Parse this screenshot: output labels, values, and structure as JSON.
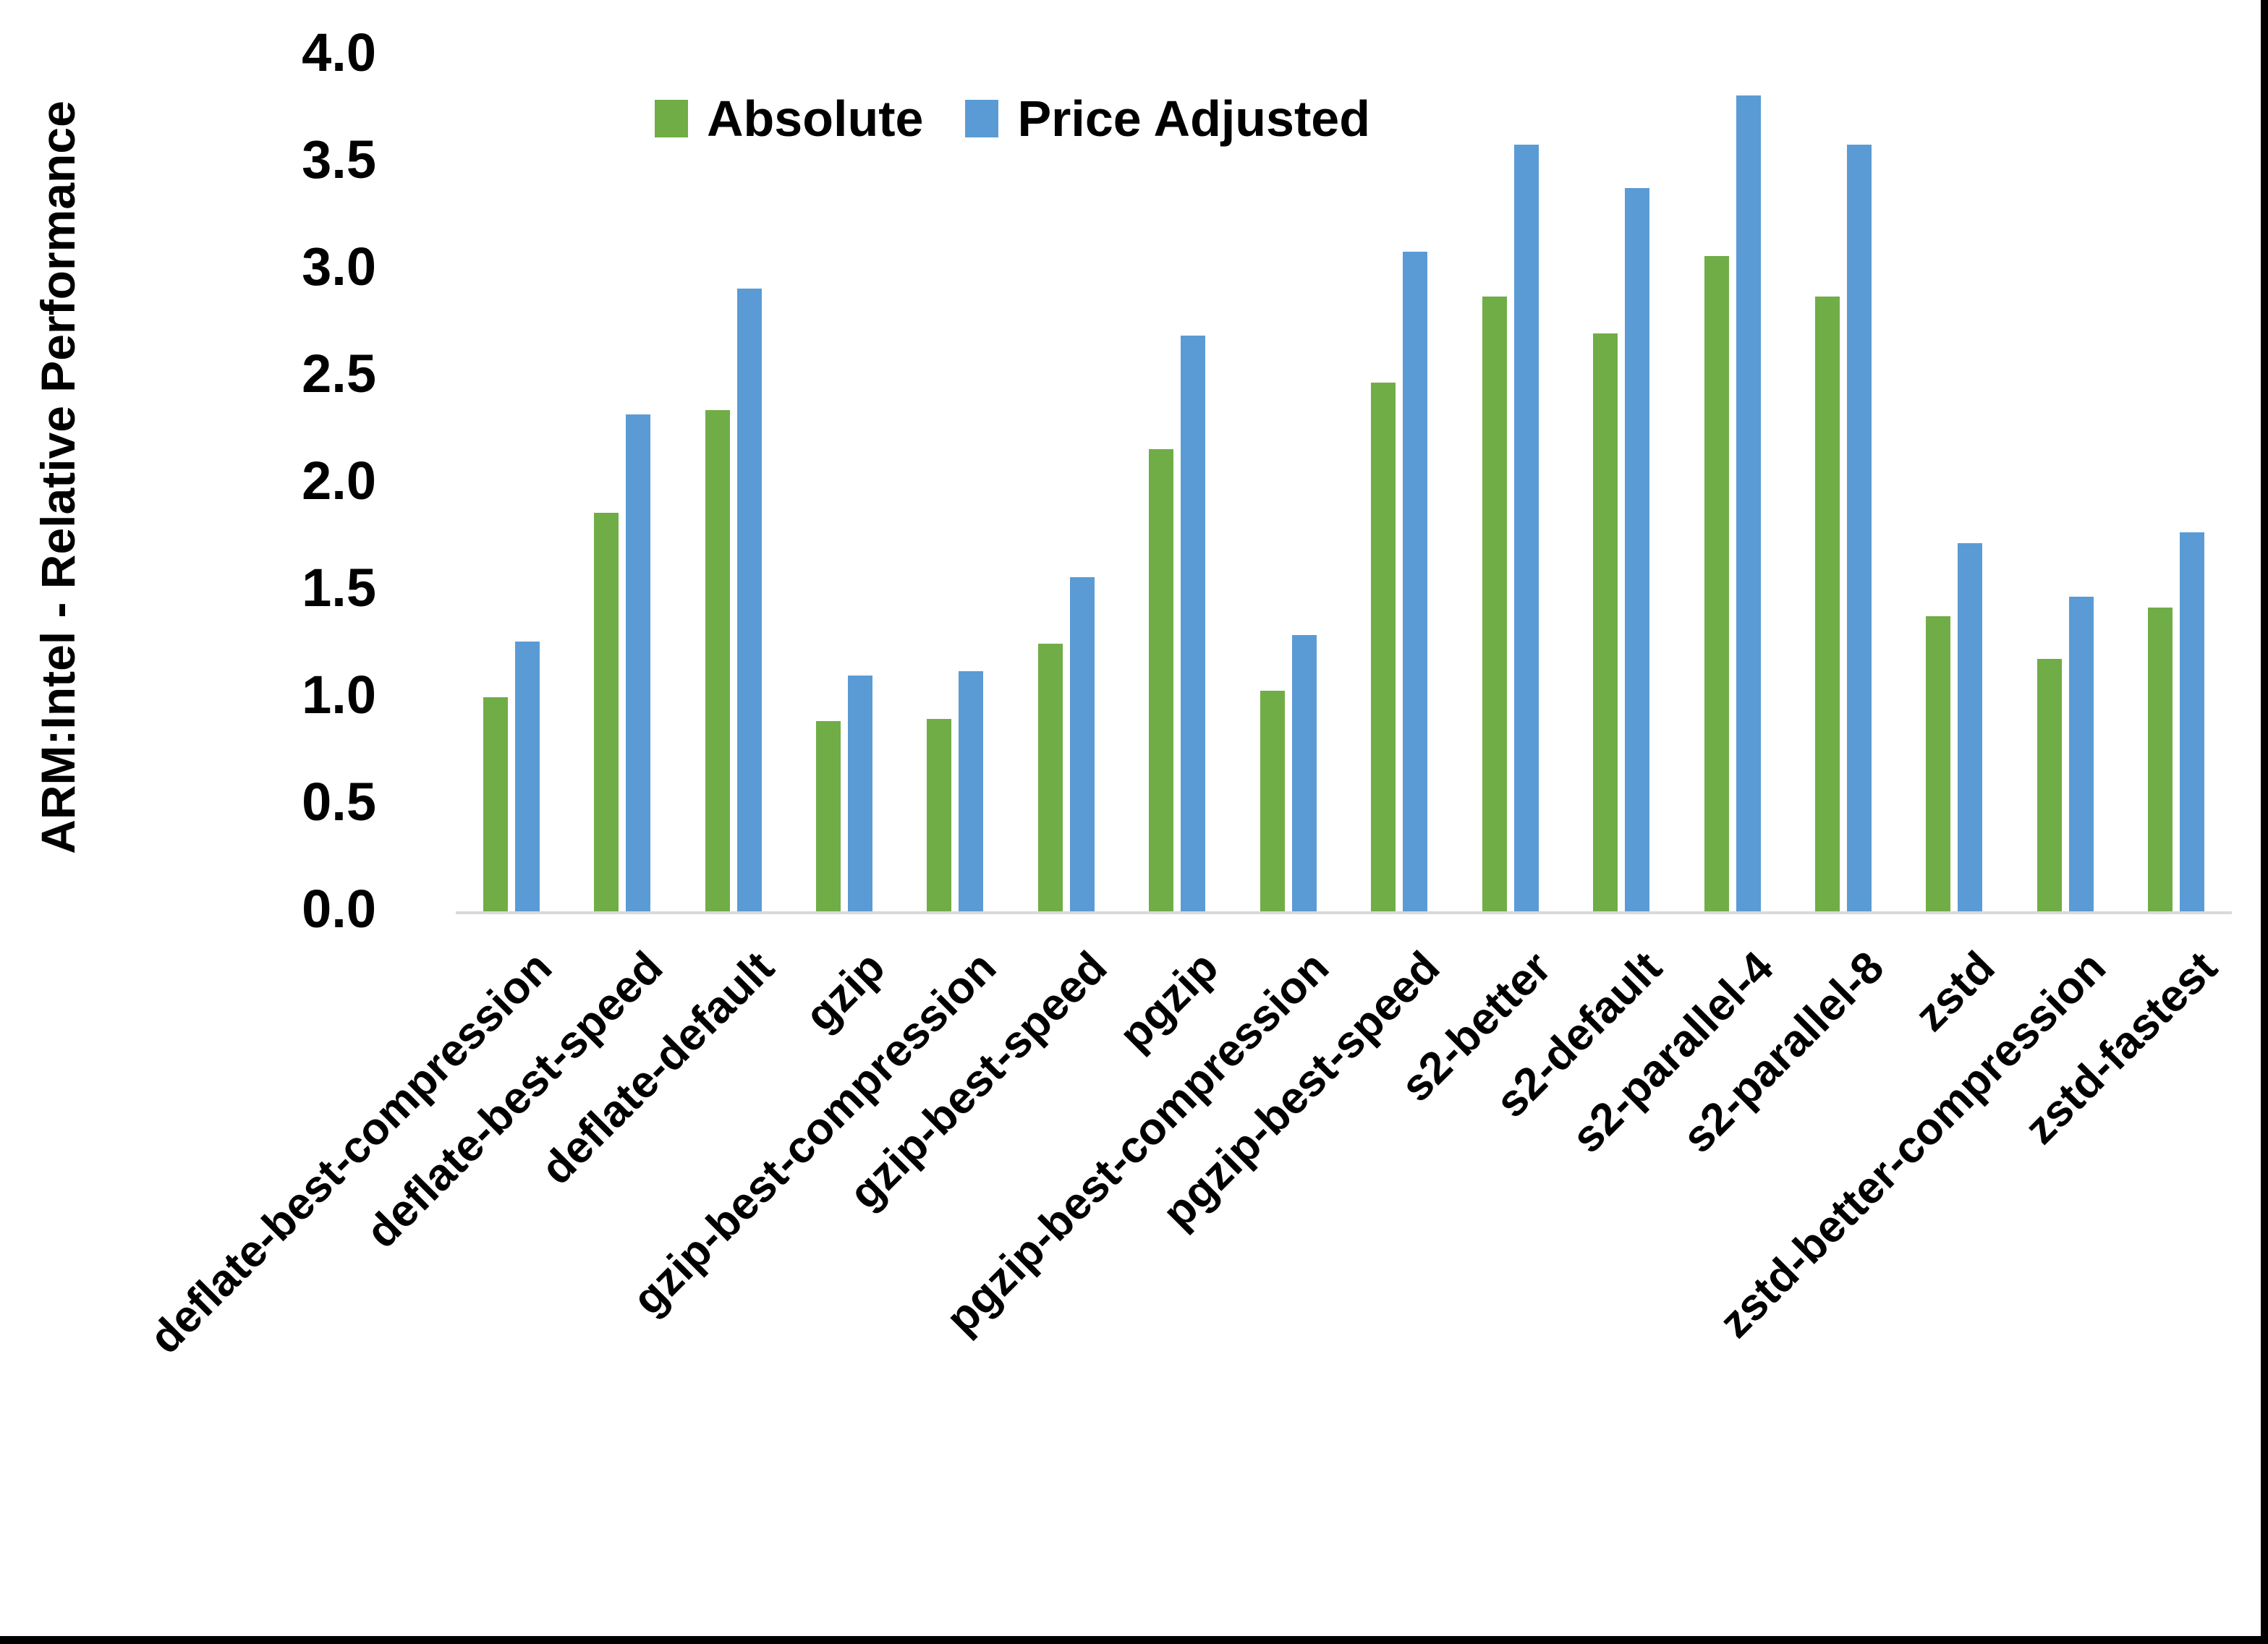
{
  "figure": {
    "y_axis_title": "ARM:Intel - Relative Performance",
    "colors": {
      "absolute_green": "#70AD47",
      "price_adjusted_blue": "#5B9BD5",
      "axis_line": "#D9D9D9",
      "text": "#000000",
      "frame": "#000000",
      "background": "#FFFFFF"
    }
  },
  "chart_data": {
    "type": "bar",
    "title": "",
    "xlabel": "",
    "ylabel": "ARM:Intel - Relative Performance",
    "ylim": [
      0.0,
      4.0
    ],
    "ytick_step": 0.5,
    "ytick_labels": [
      "0.0",
      "0.5",
      "1.0",
      "1.5",
      "2.0",
      "2.5",
      "3.0",
      "3.5",
      "4.0"
    ],
    "grid": false,
    "legend_position": "top-center",
    "categories": [
      "deflate-best-compression",
      "deflate-best-speed",
      "deflate-default",
      "gzip",
      "gzip-best-compression",
      "gzip-best-speed",
      "pgzip",
      "pgzip-best-compression",
      "pgzip-best-speed",
      "s2-better",
      "s2-default",
      "s2-parallel-4",
      "s2-parallel-8",
      "zstd",
      "zstd-better-compression",
      "zstd-fastest"
    ],
    "series": [
      {
        "name": "Absolute",
        "color": "#70AD47",
        "values": [
          1.0,
          1.86,
          2.34,
          0.89,
          0.9,
          1.25,
          2.16,
          1.03,
          2.47,
          2.87,
          2.7,
          3.06,
          2.87,
          1.38,
          1.18,
          1.42
        ]
      },
      {
        "name": "Price Adjusted",
        "color": "#5B9BD5",
        "values": [
          1.26,
          2.32,
          2.91,
          1.1,
          1.12,
          1.56,
          2.69,
          1.29,
          3.08,
          3.58,
          3.38,
          3.81,
          3.58,
          1.72,
          1.47,
          1.77
        ]
      }
    ]
  }
}
